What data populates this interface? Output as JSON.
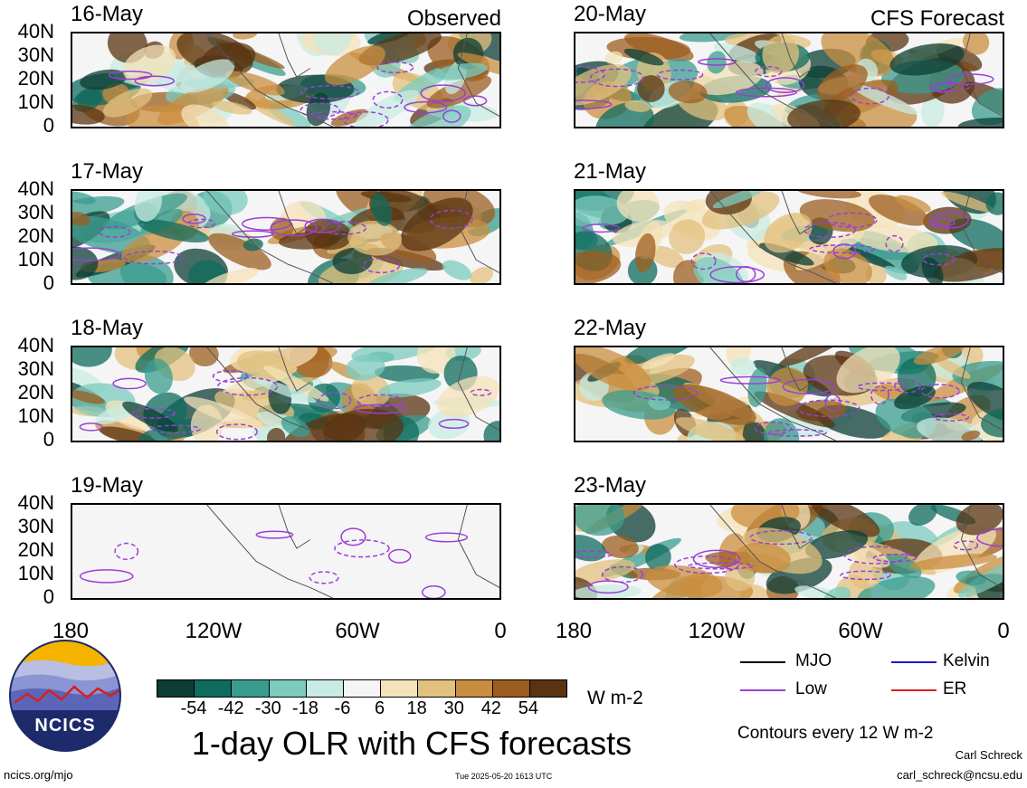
{
  "panels_left": [
    {
      "date": "16-May",
      "tag": "Observed"
    },
    {
      "date": "17-May",
      "tag": ""
    },
    {
      "date": "18-May",
      "tag": ""
    },
    {
      "date": "19-May",
      "tag": ""
    }
  ],
  "panels_right": [
    {
      "date": "20-May",
      "tag": "CFS Forecast"
    },
    {
      "date": "21-May",
      "tag": ""
    },
    {
      "date": "22-May",
      "tag": ""
    },
    {
      "date": "23-May",
      "tag": ""
    }
  ],
  "y_ticks": [
    "40N",
    "30N",
    "20N",
    "10N",
    "0"
  ],
  "x_ticks": [
    "180",
    "120W",
    "60W",
    "0"
  ],
  "colorbar": {
    "colors": [
      "#0b3d34",
      "#0f6b5e",
      "#3a9c8f",
      "#7ccbbd",
      "#c8ebe3",
      "#f5f5f5",
      "#f4e2b8",
      "#e2c07e",
      "#c98d3f",
      "#9c5d1f",
      "#5a3412"
    ],
    "labels": [
      "-54",
      "-42",
      "-30",
      "-18",
      "-6",
      "6",
      "18",
      "30",
      "42",
      "54"
    ],
    "unit": "W m-2"
  },
  "legend": {
    "items": [
      {
        "label": "MJO",
        "color": "#000000"
      },
      {
        "label": "Kelvin",
        "color": "#1a1acc"
      },
      {
        "label": "Low",
        "color": "#9a3fd6"
      },
      {
        "label": "ER",
        "color": "#d62020"
      }
    ],
    "contour_note": "Contours every 12 W m-2"
  },
  "title": "1-day OLR with CFS forecasts",
  "logo_text": "NCICS",
  "footer": {
    "url": "ncics.org/mjo",
    "timestamp": "Tue 2025-05-20 1613 UTC",
    "author": "Carl Schreck",
    "email": "carl_schreck@ncsu.edu"
  }
}
